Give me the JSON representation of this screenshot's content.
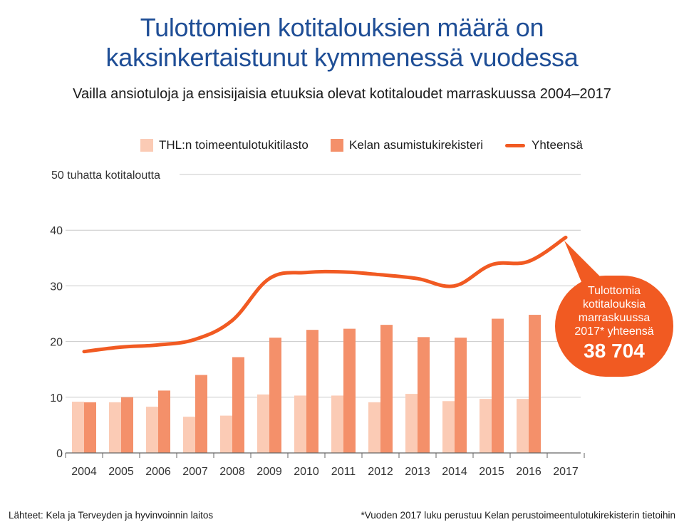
{
  "header": {
    "title_line1": "Tulottomien kotitalouksien määrä on",
    "title_line2": "kaksinkertaistunut kymmenessä vuodessa",
    "subtitle": "Vailla ansiotuloja ja ensisijaisia etuuksia olevat kotitaloudet marraskuussa 2004–2017"
  },
  "legend": {
    "items": [
      {
        "label": "THL:n toimeentulotukitilasto",
        "color": "#fbcbb5",
        "kind": "bar"
      },
      {
        "label": "Kelan asumistukirekisteri",
        "color": "#f4906a",
        "kind": "bar"
      },
      {
        "label": "Yhteensä",
        "color": "#f15a22",
        "kind": "line"
      }
    ]
  },
  "callout": {
    "text": "Tulottomia\nkotitalouksia\nmarraskuussa\n2017* yhteensä",
    "value": "38 704",
    "color": "#f15a22"
  },
  "footer": {
    "source": "Lähteet: Kela ja Terveyden ja hyvinvoinnin laitos",
    "note": "*Vuoden 2017 luku perustuu Kelan perustoimeentulotukirekisterin tietoihin"
  },
  "chart_data": {
    "type": "bar",
    "ylabel": "50 tuhatta kotitaloutta",
    "ylim": [
      0,
      50
    ],
    "yticks": [
      0,
      10,
      20,
      30,
      40
    ],
    "grid": true,
    "legend_position": "top",
    "categories": [
      "2004",
      "2005",
      "2006",
      "2007",
      "2008",
      "2009",
      "2010",
      "2011",
      "2012",
      "2013",
      "2014",
      "2015",
      "2016",
      "2017"
    ],
    "series": [
      {
        "name": "THL:n toimeentulotukitilasto",
        "type": "bar",
        "color": "#fbcbb5",
        "values": [
          9.2,
          9.1,
          8.3,
          6.5,
          6.7,
          10.5,
          10.3,
          10.3,
          9.1,
          10.6,
          9.3,
          9.7,
          9.7,
          null
        ]
      },
      {
        "name": "Kelan asumistukirekisteri",
        "type": "bar",
        "color": "#f4906a",
        "values": [
          9.1,
          10.0,
          11.2,
          14.0,
          17.2,
          20.7,
          22.1,
          22.3,
          23.0,
          20.8,
          20.7,
          24.1,
          24.8,
          null
        ]
      },
      {
        "name": "Yhteensä",
        "type": "line",
        "color": "#f15a22",
        "values": [
          18.2,
          19.0,
          19.4,
          20.4,
          23.8,
          31.3,
          32.4,
          32.5,
          32.0,
          31.3,
          30.0,
          33.8,
          34.4,
          38.7
        ]
      }
    ]
  }
}
